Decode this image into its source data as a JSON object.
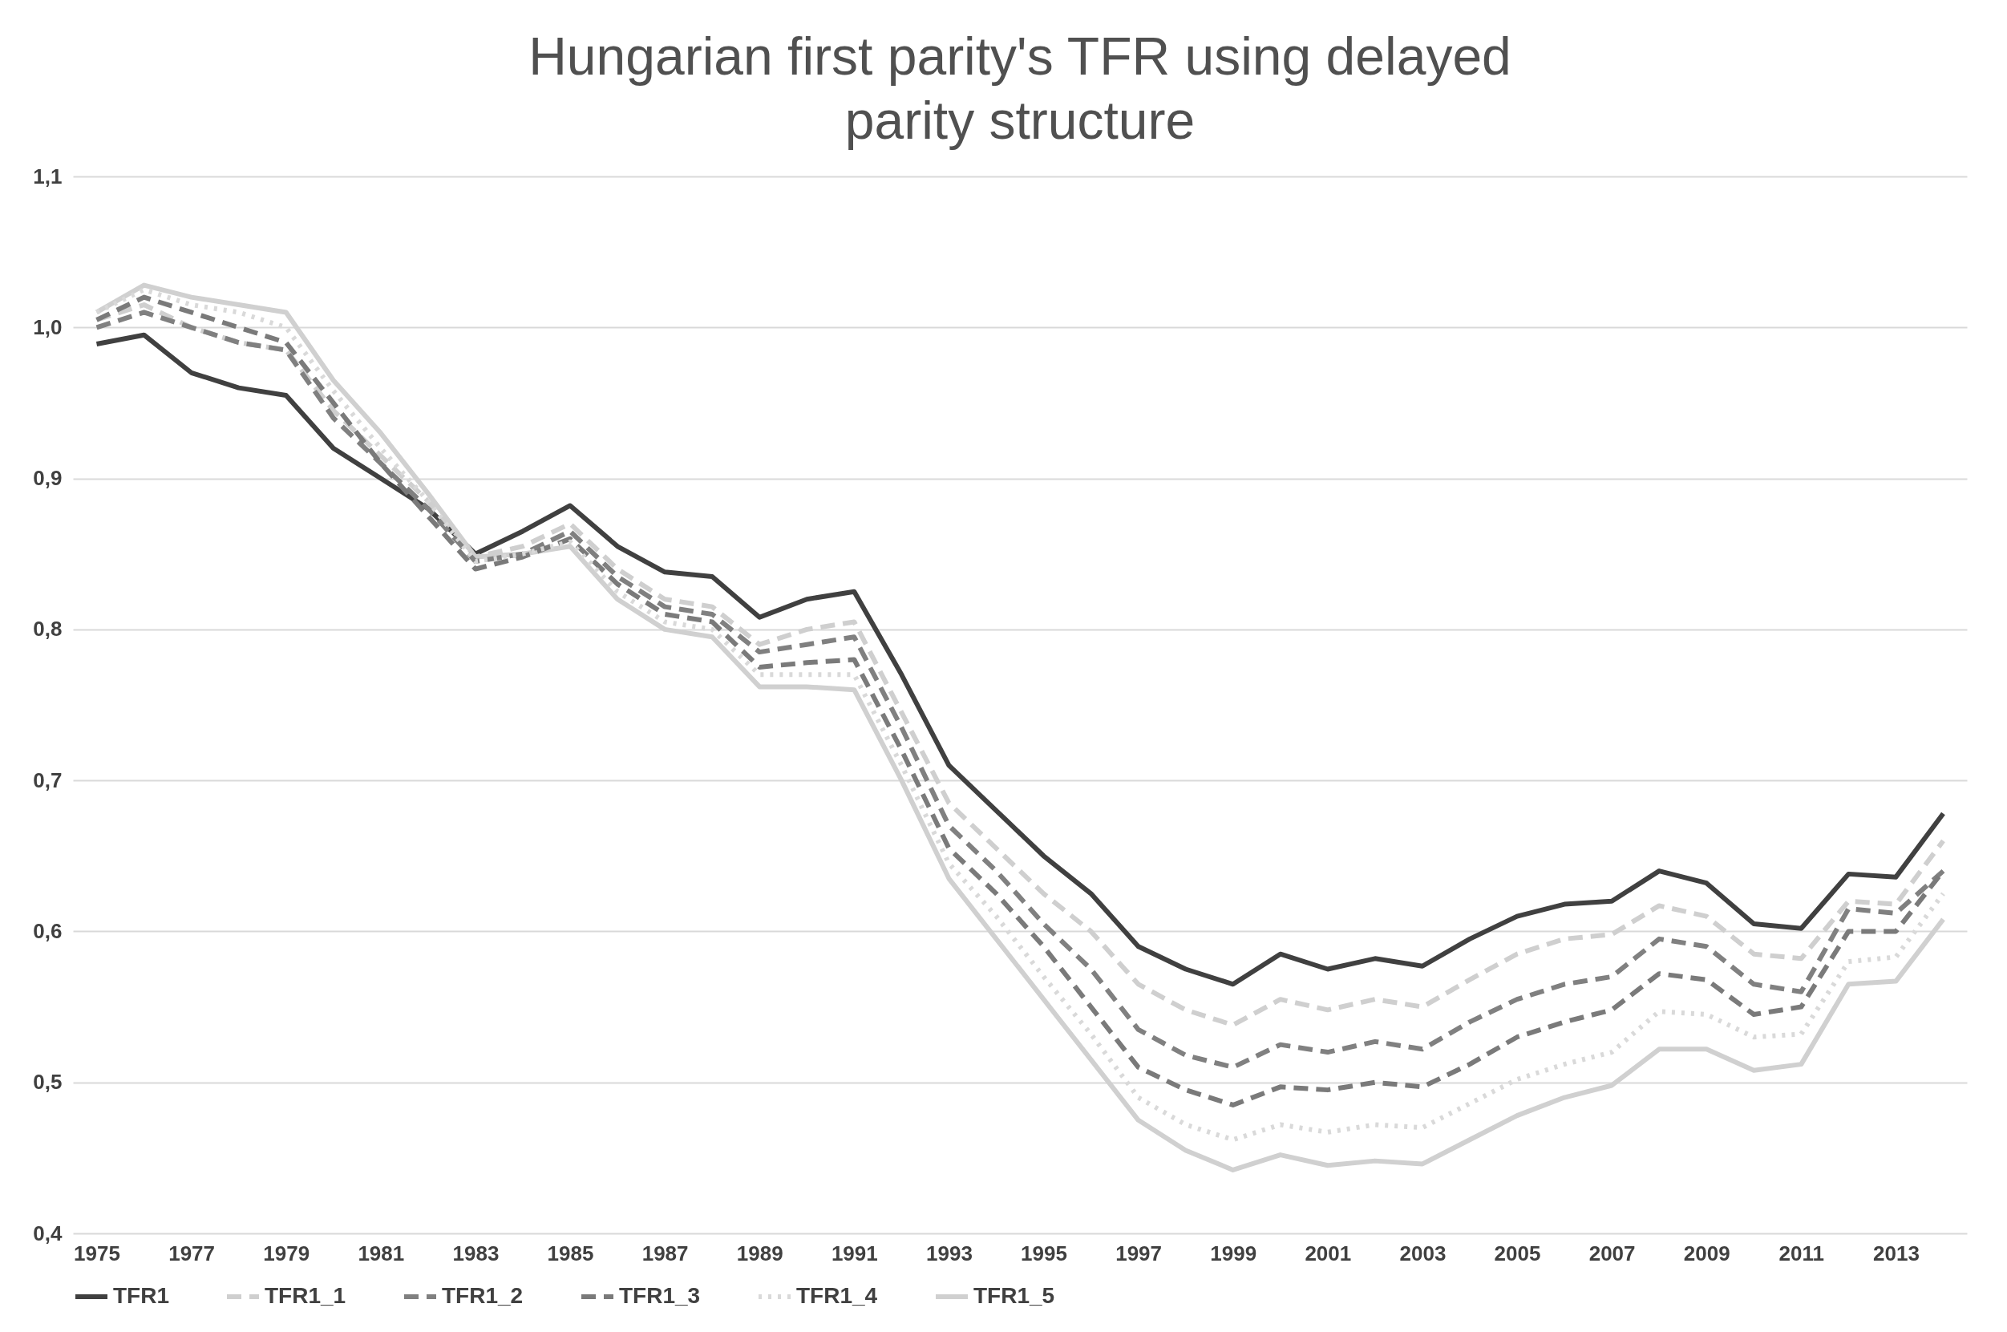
{
  "chart_data": {
    "type": "line",
    "title": "Hungarian first parity's TFR using delayed parity structure",
    "x": [
      1975,
      1976,
      1977,
      1978,
      1979,
      1980,
      1981,
      1982,
      1983,
      1984,
      1985,
      1986,
      1987,
      1988,
      1989,
      1990,
      1991,
      1992,
      1993,
      1994,
      1995,
      1996,
      1997,
      1998,
      1999,
      2000,
      2001,
      2002,
      2003,
      2004,
      2005,
      2006,
      2007,
      2008,
      2009,
      2010,
      2011,
      2012,
      2013,
      2014
    ],
    "series": [
      {
        "name": "TFR1",
        "color": "#404040",
        "line_style": "solid",
        "values": [
          0.989,
          0.995,
          0.97,
          0.96,
          0.955,
          0.92,
          0.9,
          0.88,
          0.85,
          0.865,
          0.882,
          0.855,
          0.838,
          0.835,
          0.808,
          0.82,
          0.825,
          0.77,
          0.71,
          0.68,
          0.65,
          0.625,
          0.59,
          0.575,
          0.565,
          0.585,
          0.575,
          0.582,
          0.577,
          0.595,
          0.61,
          0.618,
          0.62,
          0.64,
          0.632,
          0.605,
          0.602,
          0.638,
          0.636,
          0.678
        ]
      },
      {
        "name": "TFR1_1",
        "color": "#cfcfcf",
        "line_style": "dashed",
        "values": [
          1.005,
          1.015,
          1.0,
          0.99,
          0.985,
          0.945,
          0.915,
          0.885,
          0.848,
          0.855,
          0.87,
          0.84,
          0.82,
          0.815,
          0.79,
          0.8,
          0.805,
          0.745,
          0.685,
          0.655,
          0.625,
          0.6,
          0.565,
          0.548,
          0.538,
          0.555,
          0.548,
          0.555,
          0.55,
          0.568,
          0.585,
          0.595,
          0.598,
          0.617,
          0.61,
          0.585,
          0.582,
          0.62,
          0.618,
          0.66
        ]
      },
      {
        "name": "TFR1_2",
        "color": "#808080",
        "line_style": "dashed",
        "values": [
          1.0,
          1.01,
          1.0,
          0.99,
          0.985,
          0.94,
          0.91,
          0.88,
          0.845,
          0.85,
          0.865,
          0.835,
          0.815,
          0.81,
          0.785,
          0.79,
          0.795,
          0.735,
          0.67,
          0.64,
          0.605,
          0.575,
          0.535,
          0.518,
          0.51,
          0.525,
          0.52,
          0.527,
          0.522,
          0.54,
          0.555,
          0.565,
          0.57,
          0.595,
          0.59,
          0.565,
          0.56,
          0.615,
          0.612,
          0.64
        ]
      },
      {
        "name": "TFR1_3",
        "color": "#7a7a7a",
        "line_style": "dashed",
        "values": [
          1.005,
          1.02,
          1.01,
          1.0,
          0.99,
          0.95,
          0.91,
          0.875,
          0.84,
          0.848,
          0.86,
          0.83,
          0.81,
          0.805,
          0.775,
          0.778,
          0.78,
          0.72,
          0.655,
          0.625,
          0.59,
          0.55,
          0.51,
          0.495,
          0.485,
          0.497,
          0.495,
          0.5,
          0.497,
          0.512,
          0.53,
          0.54,
          0.548,
          0.572,
          0.568,
          0.545,
          0.55,
          0.6,
          0.6,
          0.64
        ]
      },
      {
        "name": "TFR1_4",
        "color": "#d9d9d9",
        "line_style": "dotted",
        "values": [
          1.01,
          1.025,
          1.015,
          1.01,
          1.0,
          0.958,
          0.92,
          0.885,
          0.845,
          0.85,
          0.858,
          0.825,
          0.805,
          0.8,
          0.77,
          0.77,
          0.77,
          0.71,
          0.645,
          0.61,
          0.57,
          0.532,
          0.49,
          0.472,
          0.462,
          0.472,
          0.467,
          0.472,
          0.47,
          0.486,
          0.502,
          0.512,
          0.52,
          0.547,
          0.545,
          0.53,
          0.532,
          0.58,
          0.583,
          0.625
        ]
      },
      {
        "name": "TFR1_5",
        "color": "#d0d0d0",
        "line_style": "solid",
        "values": [
          1.01,
          1.028,
          1.02,
          1.015,
          1.01,
          0.965,
          0.93,
          0.89,
          0.848,
          0.85,
          0.855,
          0.82,
          0.8,
          0.795,
          0.762,
          0.762,
          0.76,
          0.7,
          0.635,
          0.595,
          0.555,
          0.515,
          0.475,
          0.455,
          0.442,
          0.452,
          0.445,
          0.448,
          0.446,
          0.462,
          0.478,
          0.49,
          0.498,
          0.522,
          0.522,
          0.508,
          0.512,
          0.565,
          0.567,
          0.608
        ]
      }
    ],
    "xlim": [
      1974.5,
      2014.5
    ],
    "xticks": [
      1975,
      1977,
      1979,
      1981,
      1983,
      1985,
      1987,
      1989,
      1991,
      1993,
      1995,
      1997,
      1999,
      2001,
      2003,
      2005,
      2007,
      2009,
      2011,
      2013
    ],
    "ylim": [
      0.4,
      1.1
    ],
    "yticks": [
      {
        "value": 0.4,
        "label": "0,4"
      },
      {
        "value": 0.5,
        "label": "0,5"
      },
      {
        "value": 0.6,
        "label": "0,6"
      },
      {
        "value": 0.7,
        "label": "0,7"
      },
      {
        "value": 0.8,
        "label": "0,8"
      },
      {
        "value": 0.9,
        "label": "0,9"
      },
      {
        "value": 1.0,
        "label": "1,0"
      },
      {
        "value": 1.1,
        "label": "1,1"
      }
    ],
    "grid": "y",
    "legend": "bottom",
    "marker": "none"
  }
}
